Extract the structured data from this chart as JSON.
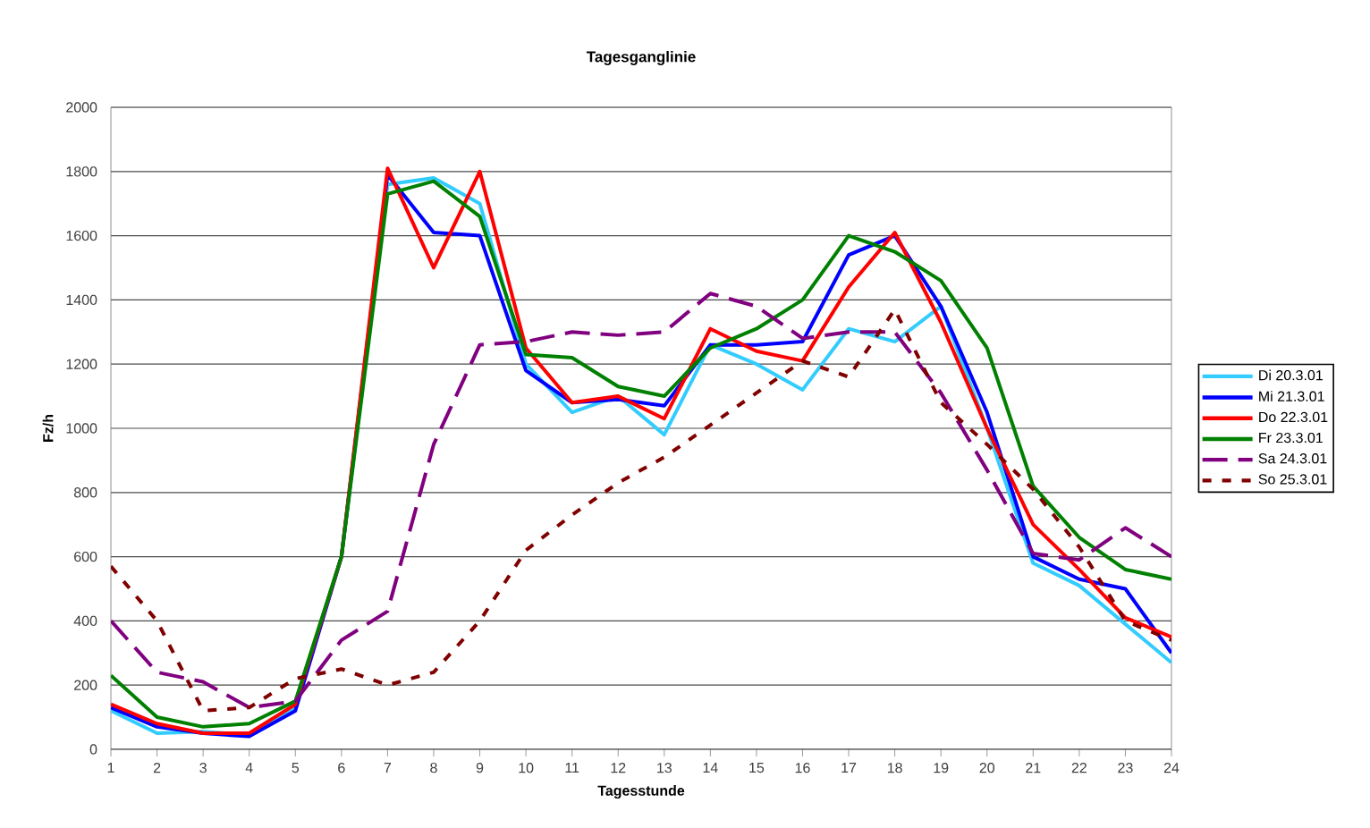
{
  "chart_data": {
    "type": "line",
    "title": "Tagesganglinie",
    "xlabel": "Tagesstunde",
    "ylabel": "Fz/h",
    "x": [
      1,
      2,
      3,
      4,
      5,
      6,
      7,
      8,
      9,
      10,
      11,
      12,
      13,
      14,
      15,
      16,
      17,
      18,
      19,
      20,
      21,
      22,
      23,
      24
    ],
    "xlim": [
      1,
      24
    ],
    "xticks": [
      1,
      2,
      3,
      4,
      5,
      6,
      7,
      8,
      9,
      10,
      11,
      12,
      13,
      14,
      15,
      16,
      17,
      18,
      19,
      20,
      21,
      22,
      23,
      24
    ],
    "ylim": [
      0,
      2000
    ],
    "yticks": [
      0,
      200,
      400,
      600,
      800,
      1000,
      1200,
      1400,
      1600,
      1800,
      2000
    ],
    "grid": "y",
    "legend": "right",
    "marker": "none",
    "series": [
      {
        "name": "Di 20.3.01",
        "color": "#33ccff",
        "line_style": "solid",
        "values": [
          120,
          50,
          55,
          45,
          130,
          600,
          1760,
          1780,
          1700,
          1200,
          1050,
          1100,
          980,
          1260,
          1200,
          1120,
          1310,
          1270,
          1380,
          1000,
          580,
          510,
          390,
          270
        ]
      },
      {
        "name": "Mi 21.3.01",
        "color": "#0000ff",
        "line_style": "solid",
        "values": [
          130,
          70,
          50,
          40,
          120,
          600,
          1790,
          1610,
          1600,
          1180,
          1080,
          1090,
          1070,
          1260,
          1260,
          1270,
          1540,
          1600,
          1380,
          1050,
          600,
          530,
          500,
          300
        ]
      },
      {
        "name": "Do 22.3.01",
        "color": "#ff0000",
        "line_style": "solid",
        "values": [
          140,
          80,
          50,
          50,
          140,
          600,
          1810,
          1500,
          1800,
          1250,
          1080,
          1100,
          1030,
          1310,
          1240,
          1210,
          1440,
          1610,
          1330,
          1000,
          700,
          560,
          410,
          350
        ]
      },
      {
        "name": "Fr 23.3.01",
        "color": "#008000",
        "line_style": "solid",
        "values": [
          230,
          100,
          70,
          80,
          150,
          600,
          1730,
          1770,
          1660,
          1230,
          1220,
          1130,
          1100,
          1250,
          1310,
          1400,
          1600,
          1550,
          1460,
          1250,
          820,
          660,
          560,
          530
        ]
      },
      {
        "name": "Sa 24.3.01",
        "color": "#800080",
        "line_style": "dashed",
        "values": [
          400,
          240,
          210,
          130,
          150,
          340,
          430,
          950,
          1260,
          1270,
          1300,
          1290,
          1300,
          1420,
          1380,
          1280,
          1300,
          1300,
          1110,
          870,
          610,
          590,
          690,
          600
        ]
      },
      {
        "name": "So 25.3.01",
        "color": "#800000",
        "line_style": "dotted",
        "values": [
          570,
          400,
          120,
          130,
          220,
          250,
          200,
          240,
          400,
          620,
          730,
          830,
          910,
          1010,
          1110,
          1210,
          1160,
          1370,
          1080,
          950,
          810,
          630,
          400,
          340
        ]
      }
    ]
  }
}
